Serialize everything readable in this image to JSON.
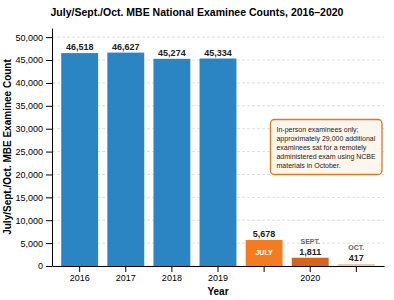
{
  "chart_data": {
    "type": "bar",
    "title": "July/Sept./Oct. MBE National Examinee Counts, 2016–2020",
    "xlabel": "Year",
    "ylabel": "July/Sept./Oct. MBE Examinee Count",
    "categories": [
      "2016",
      "2017",
      "2018",
      "2019",
      null,
      "2020",
      null
    ],
    "values": [
      46518,
      46627,
      45274,
      45334,
      5678,
      1811,
      417
    ],
    "value_labels": [
      "46,518",
      "46,627",
      "45,274",
      "45,334",
      "5,678",
      "1,811",
      "417"
    ],
    "bar_labels": [
      null,
      null,
      null,
      null,
      "JULY",
      "SEPT.",
      "OCT."
    ],
    "colors": [
      "#2b85c2",
      "#2b85c2",
      "#2b85c2",
      "#2b85c2",
      "#f47c20",
      "#d4651a",
      "#e8c9a0"
    ],
    "ylim": [
      0,
      52000
    ],
    "yticks": [
      0,
      {
        "value": 5000,
        "label": "5,000"
      },
      {
        "value": 10000,
        "label": "10,000"
      },
      {
        "value": 15000,
        "label": "15,000"
      },
      {
        "value": 20000,
        "label": "20,000"
      },
      {
        "value": 25000,
        "label": "25,000"
      },
      {
        "value": 30000,
        "label": "30,000"
      },
      {
        "value": 35000,
        "label": "35,000"
      },
      {
        "value": 40000,
        "label": "40,000"
      },
      {
        "value": 45000,
        "label": "45,000"
      },
      {
        "value": 50000,
        "label": "50,000"
      }
    ],
    "annotation": "In-person examinees only;\napproximately 29,000 additional\nexaminees sat for a remotely\nadministered exam using NCBE\nmaterials in October.",
    "data_labels": true,
    "grid": true
  }
}
